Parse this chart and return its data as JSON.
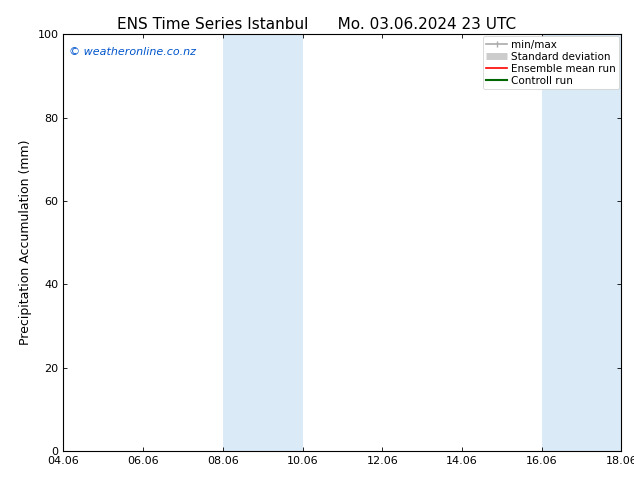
{
  "title_left": "ENS Time Series Istanbul",
  "title_right": "Mo. 03.06.2024 23 UTC",
  "ylabel": "Precipitation Accumulation (mm)",
  "ylim": [
    0,
    100
  ],
  "yticks": [
    0,
    20,
    40,
    60,
    80,
    100
  ],
  "xtick_labels": [
    "04.06",
    "06.06",
    "08.06",
    "10.06",
    "12.06",
    "14.06",
    "16.06",
    "18.06"
  ],
  "xtick_positions": [
    0,
    2,
    4,
    6,
    8,
    10,
    12,
    14
  ],
  "shaded_bands": [
    {
      "x_start": 4,
      "x_end": 6
    },
    {
      "x_start": 12,
      "x_end": 14
    }
  ],
  "shaded_color": "#daeaf6",
  "copyright_text": "© weatheronline.co.nz",
  "copyright_color": "#0055cc",
  "legend_entries": [
    {
      "label": "min/max",
      "color": "#aaaaaa",
      "lw": 1.2,
      "style": "line_with_caps"
    },
    {
      "label": "Standard deviation",
      "color": "#cccccc",
      "lw": 5,
      "style": "thick"
    },
    {
      "label": "Ensemble mean run",
      "color": "#ff0000",
      "lw": 1.2,
      "style": "solid"
    },
    {
      "label": "Controll run",
      "color": "#006600",
      "lw": 1.5,
      "style": "solid"
    }
  ],
  "background_color": "#ffffff",
  "plot_bg_color": "#ffffff",
  "title_fontsize": 11,
  "axis_fontsize": 9,
  "tick_fontsize": 8,
  "legend_fontsize": 7.5
}
